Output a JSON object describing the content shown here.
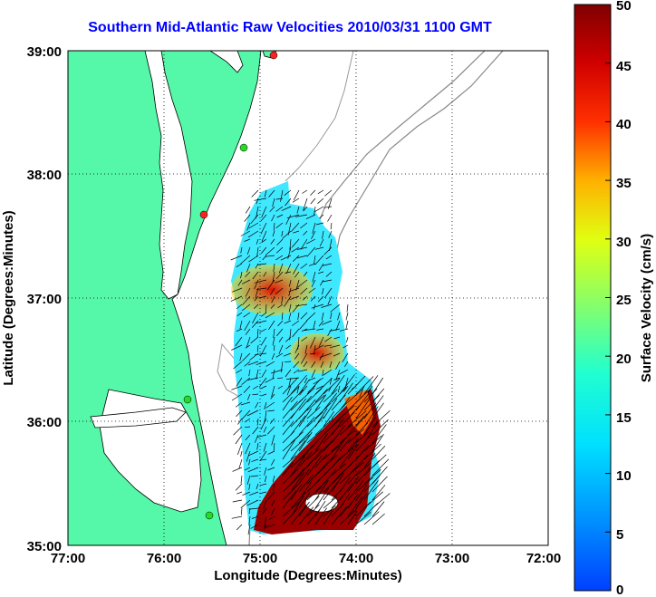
{
  "title": "Southern Mid-Atlantic Raw Velocities 2010/03/31 1100 GMT",
  "map": {
    "xlabel": "Longitude (Degrees:Minutes)",
    "ylabel": "Latitude (Degrees:Minutes)",
    "x_ticks": [
      "77:00",
      "76:00",
      "75:00",
      "74:00",
      "73:00",
      "72:00"
    ],
    "y_ticks": [
      "39:00",
      "38:00",
      "37:00",
      "36:00",
      "35:00"
    ],
    "land_color": "#55f7a8",
    "grid": true
  },
  "colorbar": {
    "label": "Surface Velocity (cm/s)",
    "ticks": [
      "50",
      "45",
      "40",
      "35",
      "30",
      "25",
      "20",
      "15",
      "10",
      "5",
      "0"
    ],
    "range": [
      0,
      50
    ],
    "colormap": "jet"
  },
  "stations": [
    {
      "color": "#ff2020"
    },
    {
      "color": "#22dd22"
    },
    {
      "color": "#ff2020"
    },
    {
      "color": "#22dd22"
    },
    {
      "color": "#22dd22"
    }
  ]
}
